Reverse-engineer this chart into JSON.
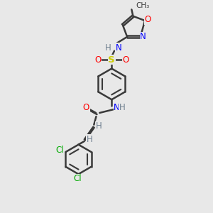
{
  "bg_color": "#e8e8e8",
  "bond_color": "#3a3a3a",
  "bond_width": 1.8,
  "atom_colors": {
    "N": "#0000ff",
    "O": "#ff0000",
    "S": "#cccc00",
    "Cl": "#00aa00",
    "C": "#3a3a3a",
    "H": "#708090"
  },
  "font_size": 8.5,
  "xlim": [
    0,
    10
  ],
  "ylim": [
    0,
    14
  ]
}
